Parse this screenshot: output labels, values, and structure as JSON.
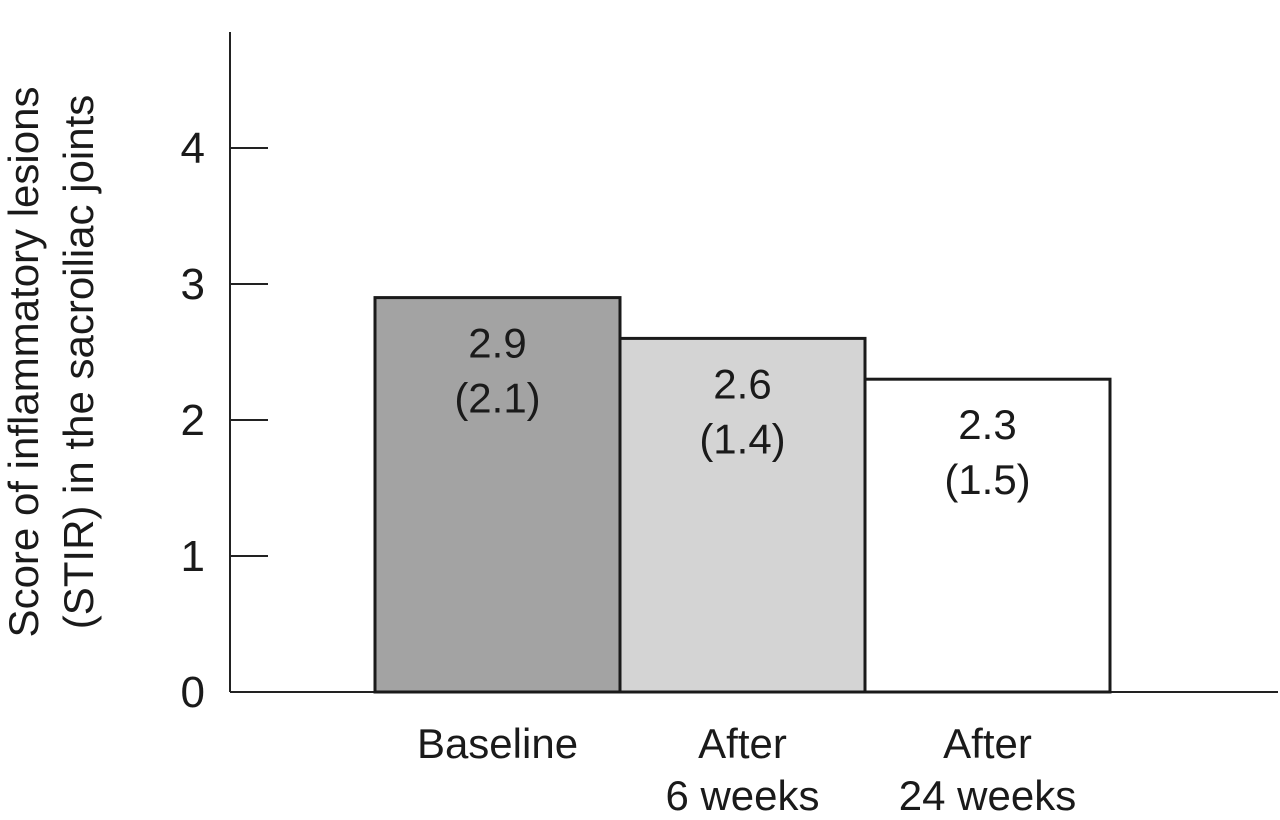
{
  "chart_data": {
    "type": "bar",
    "title": "",
    "xlabel": "",
    "ylabel_lines": [
      "Score of inflammatory lesions",
      "(STIR) in the sacroiliac joints"
    ],
    "ylim": [
      0,
      5
    ],
    "yticks": [
      0,
      1,
      2,
      3,
      4
    ],
    "grid": false,
    "categories": [
      {
        "lines": [
          "Baseline"
        ]
      },
      {
        "lines": [
          "After",
          "6 weeks"
        ]
      },
      {
        "lines": [
          "After",
          "24 weeks"
        ]
      }
    ],
    "values": [
      2.9,
      2.6,
      2.3
    ],
    "value_labels": [
      [
        "2.9",
        "(2.1)"
      ],
      [
        "2.6",
        "(1.4)"
      ],
      [
        "2.3",
        "(1.5)"
      ]
    ],
    "colors": [
      "#a3a3a3",
      "#d4d4d4",
      "#ffffff"
    ]
  }
}
